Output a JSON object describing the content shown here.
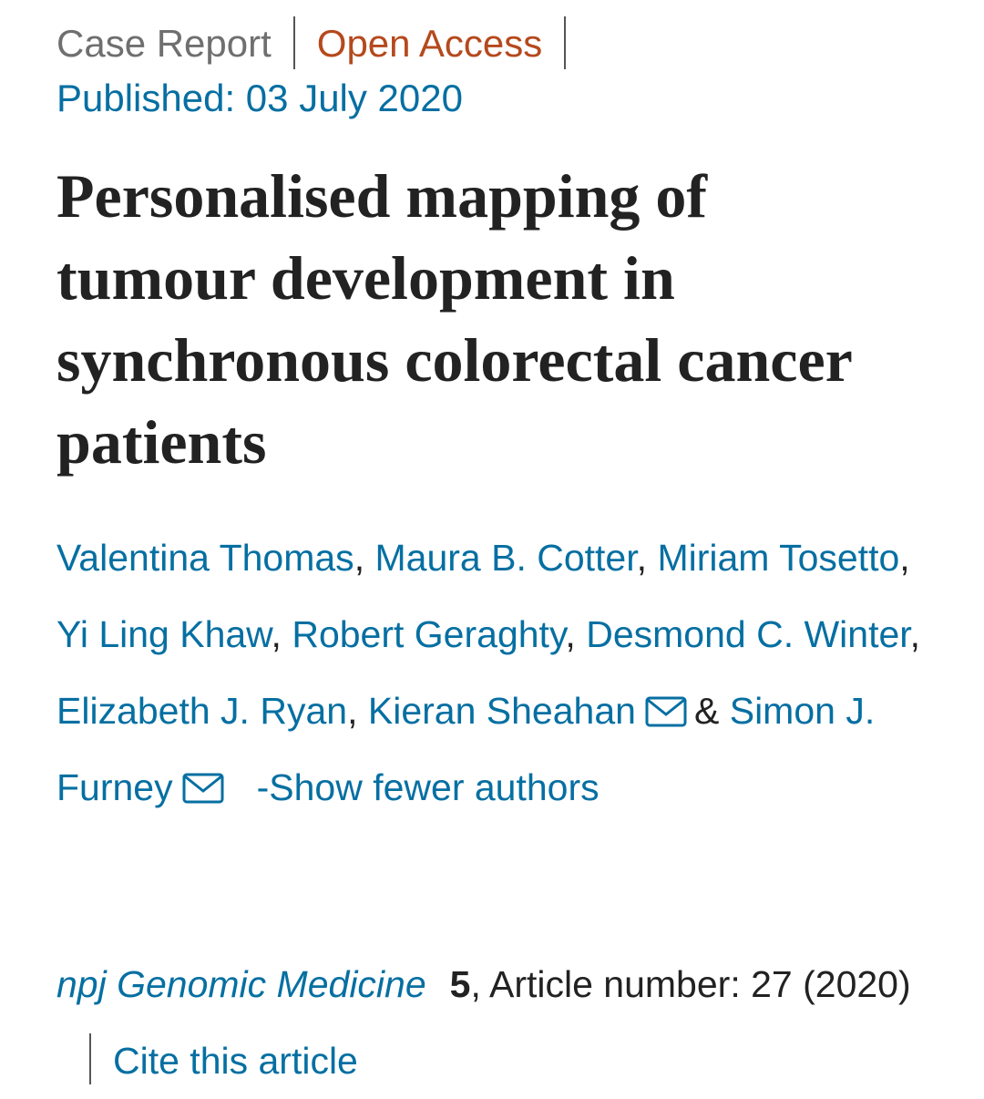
{
  "header": {
    "article_type": "Case Report",
    "access": "Open Access",
    "published": "Published: 03 July 2020"
  },
  "title": "Personalised mapping of tumour development in synchronous colorectal cancer patients",
  "authors": [
    "Valentina Thomas",
    "Maura B. Cotter",
    "Miriam Tosetto",
    "Yi Ling Khaw",
    "Robert Geraghty",
    "Desmond C. Winter",
    "Elizabeth J. Ryan",
    "Kieran Sheahan",
    "Simon J. Furney"
  ],
  "separator": ",",
  "conjunction": "&",
  "show_fewer": "-Show fewer authors",
  "citation": {
    "journal": "npj Genomic Medicine",
    "volume": "5",
    "article_number": "Article number: 27",
    "year": "(2020)",
    "cite": "Cite this article"
  }
}
